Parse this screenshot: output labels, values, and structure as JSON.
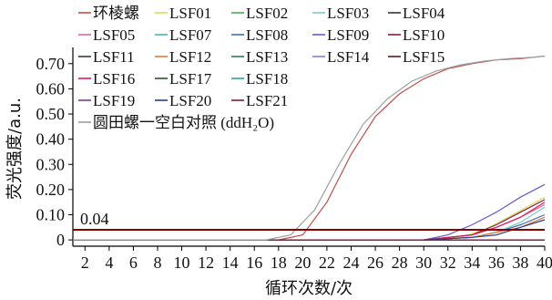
{
  "chart_data": {
    "type": "line",
    "title": "",
    "xlabel": "循环次数/次",
    "ylabel": "荧光强度/a.u.",
    "xlim": [
      1,
      40
    ],
    "ylim": [
      -0.025,
      0.75
    ],
    "x_ticks": [
      "2",
      "4",
      "6",
      "8",
      "10",
      "12",
      "14",
      "16",
      "18",
      "20",
      "22",
      "24",
      "26",
      "28",
      "30",
      "32",
      "34",
      "36",
      "38",
      "40"
    ],
    "y_ticks": [
      "0",
      "0.10",
      "0.20",
      "0.30",
      "0.40",
      "0.50",
      "0.60",
      "0.70"
    ],
    "y_tick_values": [
      0,
      0.1,
      0.2,
      0.3,
      0.4,
      0.5,
      0.6,
      0.7
    ],
    "legend_placement": "top-left",
    "threshold": {
      "value": 0.04,
      "label": "0.04",
      "color": "#8b0000"
    },
    "legend_rows": [
      [
        0,
        1,
        2,
        3,
        4
      ],
      [
        5,
        6,
        7,
        8,
        9
      ],
      [
        10,
        11,
        12,
        13,
        14
      ],
      [
        15,
        16,
        17
      ],
      [
        18,
        19,
        20
      ],
      [
        21
      ]
    ],
    "series": [
      {
        "name": "环棱螺",
        "color": "#c0504d",
        "x": [
          1,
          6,
          12,
          18,
          20,
          22,
          24,
          26,
          28,
          30,
          32,
          34,
          36,
          38,
          40
        ],
        "y": [
          0,
          0,
          0,
          0,
          0.02,
          0.15,
          0.34,
          0.49,
          0.58,
          0.64,
          0.68,
          0.7,
          0.715,
          0.72,
          0.73
        ]
      },
      {
        "name": "LSF01",
        "color": "#d4e157",
        "x": [
          1,
          10,
          20,
          30,
          33,
          35,
          37,
          40
        ],
        "y": [
          0,
          0,
          0,
          0,
          0.01,
          0.04,
          0.09,
          0.17
        ]
      },
      {
        "name": "LSF02",
        "color": "#4caf50",
        "x": [
          1,
          10,
          20,
          30,
          40
        ],
        "y": [
          0,
          0,
          0,
          0,
          0
        ]
      },
      {
        "name": "LSF03",
        "color": "#80cbc4",
        "x": [
          1,
          10,
          20,
          30,
          34,
          36,
          38,
          40
        ],
        "y": [
          0,
          0,
          0,
          0,
          0.01,
          0.03,
          0.07,
          0.13
        ]
      },
      {
        "name": "LSF04",
        "color": "#333333",
        "x": [
          1,
          10,
          20,
          30,
          40
        ],
        "y": [
          0,
          0,
          0,
          0,
          0
        ]
      },
      {
        "name": "LSF05",
        "color": "#e066a3",
        "x": [
          1,
          10,
          20,
          30,
          34,
          36,
          38,
          40
        ],
        "y": [
          0,
          0,
          0,
          0,
          0.02,
          0.05,
          0.09,
          0.14
        ]
      },
      {
        "name": "LSF07",
        "color": "#4db6ac",
        "x": [
          1,
          10,
          20,
          30,
          40
        ],
        "y": [
          0,
          0,
          0,
          0,
          0
        ]
      },
      {
        "name": "LSF08",
        "color": "#3f6fb5",
        "x": [
          1,
          10,
          20,
          30,
          34,
          36,
          38,
          40
        ],
        "y": [
          0,
          0,
          0,
          0,
          0.01,
          0.03,
          0.06,
          0.1
        ]
      },
      {
        "name": "LSF09",
        "color": "#6a5acd",
        "x": [
          1,
          10,
          20,
          30,
          32,
          34,
          36,
          38,
          40
        ],
        "y": [
          0,
          0,
          0,
          0,
          0.02,
          0.06,
          0.11,
          0.17,
          0.22
        ]
      },
      {
        "name": "LSF10",
        "color": "#8b1a4a",
        "x": [
          1,
          10,
          20,
          30,
          34,
          36,
          38,
          40
        ],
        "y": [
          0,
          0,
          0,
          0,
          0.02,
          0.06,
          0.11,
          0.16
        ]
      },
      {
        "name": "LSF11",
        "color": "#2f3e46",
        "x": [
          1,
          10,
          20,
          30,
          40
        ],
        "y": [
          0,
          0,
          0,
          0,
          0
        ]
      },
      {
        "name": "LSF12",
        "color": "#e07b39",
        "x": [
          1,
          10,
          20,
          30,
          34,
          36,
          38,
          40
        ],
        "y": [
          0,
          0,
          0,
          0,
          0.01,
          0.03,
          0.05,
          0.09
        ]
      },
      {
        "name": "LSF13",
        "color": "#2e7d5b",
        "x": [
          1,
          10,
          20,
          30,
          40
        ],
        "y": [
          0,
          0,
          0,
          0,
          0
        ]
      },
      {
        "name": "LSF14",
        "color": "#8c7cc9",
        "x": [
          1,
          10,
          20,
          30,
          40
        ],
        "y": [
          0,
          0,
          0,
          0,
          0
        ]
      },
      {
        "name": "LSF15",
        "color": "#5a1e1e",
        "x": [
          1,
          10,
          20,
          30,
          40
        ],
        "y": [
          0,
          0,
          0,
          0,
          0
        ]
      },
      {
        "name": "LSF16",
        "color": "#d81b60",
        "x": [
          1,
          10,
          20,
          30,
          34,
          36,
          38,
          40
        ],
        "y": [
          0,
          0,
          0,
          0,
          0.02,
          0.05,
          0.09,
          0.15
        ]
      },
      {
        "name": "LSF17",
        "color": "#1b5e20",
        "x": [
          1,
          10,
          20,
          30,
          40
        ],
        "y": [
          0,
          0,
          0,
          0,
          0
        ]
      },
      {
        "name": "LSF18",
        "color": "#26a69a",
        "x": [
          1,
          10,
          20,
          30,
          40
        ],
        "y": [
          0,
          0,
          0,
          0,
          0
        ]
      },
      {
        "name": "LSF19",
        "color": "#7b3f8f",
        "x": [
          1,
          10,
          20,
          30,
          40
        ],
        "y": [
          0,
          0,
          0,
          0,
          0
        ]
      },
      {
        "name": "LSF20",
        "color": "#2c3e8f",
        "x": [
          1,
          10,
          20,
          30,
          34,
          36,
          38,
          40
        ],
        "y": [
          0,
          0,
          0,
          0,
          0.01,
          0.02,
          0.05,
          0.08
        ]
      },
      {
        "name": "LSF21",
        "color": "#7a1f3d",
        "x": [
          1,
          10,
          20,
          30,
          40
        ],
        "y": [
          0,
          0,
          0,
          0,
          0
        ]
      },
      {
        "name": "圆田螺一空白对照 (ddH₂O)",
        "color": "#9e9e9e",
        "x": [
          1,
          6,
          12,
          17,
          19,
          21,
          23,
          25,
          27,
          29,
          31,
          33,
          35,
          37,
          39,
          40
        ],
        "y": [
          0,
          0,
          0,
          0,
          0.02,
          0.12,
          0.3,
          0.46,
          0.56,
          0.63,
          0.67,
          0.695,
          0.71,
          0.72,
          0.725,
          0.73
        ]
      }
    ]
  }
}
